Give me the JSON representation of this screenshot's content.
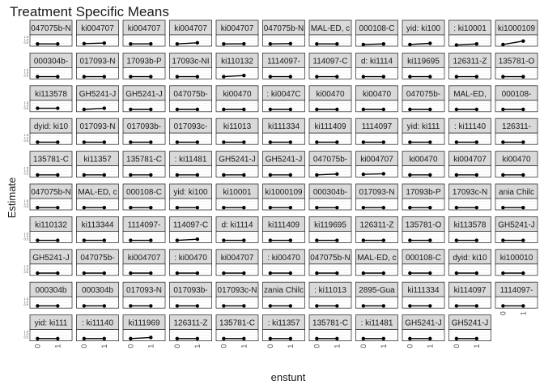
{
  "chart_data": {
    "type": "line",
    "title": "Treatment Specific Means",
    "xlabel": "enstunt",
    "ylabel": "Estimate",
    "x_categories": [
      "0",
      "1"
    ],
    "y_ticks": [
      "1.5",
      "1.0",
      "0.5"
    ],
    "ylim": [
      0,
      2
    ],
    "panels": [
      {
        "label": "047075b-N",
        "values": [
          0.4,
          0.4
        ]
      },
      {
        "label": "ki004707",
        "values": [
          0.45,
          0.55
        ]
      },
      {
        "label": "ki004707",
        "values": [
          0.4,
          0.42
        ]
      },
      {
        "label": "ki004707",
        "values": [
          0.4,
          0.6
        ]
      },
      {
        "label": "ki004707",
        "values": [
          0.4,
          0.42
        ]
      },
      {
        "label": "047075b-N",
        "values": [
          0.4,
          0.45
        ]
      },
      {
        "label": "MAL-ED, c",
        "values": [
          0.4,
          0.4
        ]
      },
      {
        "label": "000108-C",
        "values": [
          0.3,
          0.4
        ]
      },
      {
        "label": "yid: ki100",
        "values": [
          0.3,
          0.5
        ]
      },
      {
        "label": ": ki10001",
        "values": [
          0.2,
          0.4
        ]
      },
      {
        "label": "ki1000109",
        "values": [
          0.3,
          0.9
        ]
      },
      {
        "label": "000304b-",
        "values": [
          0.4,
          0.4
        ]
      },
      {
        "label": "017093-N",
        "values": [
          0.4,
          0.4
        ]
      },
      {
        "label": "17093b-P",
        "values": [
          0.4,
          0.4
        ]
      },
      {
        "label": "17093c-NI",
        "values": [
          0.4,
          0.4
        ]
      },
      {
        "label": "ki110132",
        "values": [
          0.4,
          0.6
        ]
      },
      {
        "label": "1114097-",
        "values": [
          0.4,
          0.4
        ]
      },
      {
        "label": "114097-C",
        "values": [
          0.4,
          0.4
        ]
      },
      {
        "label": "d: ki1114",
        "values": [
          0.4,
          0.4
        ]
      },
      {
        "label": "ki119695",
        "values": [
          0.4,
          0.4
        ]
      },
      {
        "label": "126311-Z",
        "values": [
          0.4,
          0.4
        ]
      },
      {
        "label": "135781-O",
        "values": [
          0.4,
          0.4
        ]
      },
      {
        "label": "ki113578",
        "values": [
          0.6,
          0.6
        ]
      },
      {
        "label": "GH5241-J",
        "values": [
          0.4,
          0.6
        ]
      },
      {
        "label": "GH5241-J",
        "values": [
          0.4,
          0.4
        ]
      },
      {
        "label": "047075b-",
        "values": [
          0.4,
          0.4
        ]
      },
      {
        "label": "ki00470",
        "values": [
          0.4,
          0.4
        ]
      },
      {
        "label": ": ki0047C",
        "values": [
          0.4,
          0.4
        ]
      },
      {
        "label": "ki00470",
        "values": [
          0.4,
          0.4
        ]
      },
      {
        "label": "ki00470",
        "values": [
          0.4,
          0.4
        ]
      },
      {
        "label": "047075b-",
        "values": [
          0.4,
          0.4
        ]
      },
      {
        "label": "MAL-ED,",
        "values": [
          0.4,
          0.4
        ]
      },
      {
        "label": "000108-",
        "values": [
          0.4,
          0.4
        ]
      },
      {
        "label": "dyid: ki10",
        "values": [
          0.4,
          0.4
        ]
      },
      {
        "label": "017093-N",
        "values": [
          0.4,
          0.4
        ]
      },
      {
        "label": "017093b-",
        "values": [
          0.4,
          0.4
        ]
      },
      {
        "label": "017093c-",
        "values": [
          0.4,
          0.4
        ]
      },
      {
        "label": "ki11013",
        "values": [
          0.4,
          0.4
        ]
      },
      {
        "label": "ki111334",
        "values": [
          0.4,
          0.4
        ]
      },
      {
        "label": "ki111409",
        "values": [
          0.4,
          0.4
        ]
      },
      {
        "label": "1114097",
        "values": [
          0.4,
          0.4
        ]
      },
      {
        "label": "yid: ki111",
        "values": [
          0.4,
          0.4
        ]
      },
      {
        "label": ": ki11140",
        "values": [
          0.4,
          0.4
        ]
      },
      {
        "label": "126311-",
        "values": [
          0.4,
          0.4
        ]
      },
      {
        "label": "135781-C",
        "values": [
          0.4,
          0.4
        ]
      },
      {
        "label": "ki11357",
        "values": [
          0.4,
          0.4
        ]
      },
      {
        "label": "135781-C",
        "values": [
          0.4,
          0.4
        ]
      },
      {
        "label": ": ki11481",
        "values": [
          0.4,
          0.4
        ]
      },
      {
        "label": "GH5241-J",
        "values": [
          0.4,
          0.4
        ]
      },
      {
        "label": "GH5241-J",
        "values": [
          0.4,
          0.4
        ]
      },
      {
        "label": "047075b-",
        "values": [
          0.4,
          0.55
        ]
      },
      {
        "label": "ki004707",
        "values": [
          0.5,
          0.6
        ]
      },
      {
        "label": "ki00470",
        "values": [
          0.4,
          0.4
        ]
      },
      {
        "label": "ki004707",
        "values": [
          0.4,
          0.4
        ]
      },
      {
        "label": "ki00470",
        "values": [
          0.4,
          0.4
        ]
      },
      {
        "label": "047075b-N",
        "values": [
          0.4,
          0.4
        ]
      },
      {
        "label": "MAL-ED, c",
        "values": [
          0.4,
          0.4
        ]
      },
      {
        "label": "000108-C",
        "values": [
          0.4,
          0.4
        ]
      },
      {
        "label": "yid: ki100",
        "values": [
          0.4,
          0.4
        ]
      },
      {
        "label": "ki10001",
        "values": [
          0.4,
          0.4
        ]
      },
      {
        "label": "ki1000109",
        "values": [
          0.4,
          0.4
        ]
      },
      {
        "label": "000304b-",
        "values": [
          0.4,
          0.4
        ]
      },
      {
        "label": "017093-N",
        "values": [
          0.4,
          0.4
        ]
      },
      {
        "label": "17093b-P",
        "values": [
          0.4,
          0.4
        ]
      },
      {
        "label": "17093c-N",
        "values": [
          0.4,
          0.4
        ]
      },
      {
        "label": "ania Chilc",
        "values": [
          0.4,
          0.4
        ]
      },
      {
        "label": "ki110132",
        "values": [
          0.4,
          0.4
        ]
      },
      {
        "label": "ki113344",
        "values": [
          0.4,
          0.4
        ]
      },
      {
        "label": "1114097-",
        "values": [
          0.4,
          0.4
        ]
      },
      {
        "label": "114097-C",
        "values": [
          0.4,
          0.6
        ]
      },
      {
        "label": "d: ki1114",
        "values": [
          0.4,
          0.4
        ]
      },
      {
        "label": "ki111409",
        "values": [
          0.4,
          0.4
        ]
      },
      {
        "label": "ki119695",
        "values": [
          0.4,
          0.4
        ]
      },
      {
        "label": "126311-Z",
        "values": [
          0.4,
          0.4
        ]
      },
      {
        "label": "135781-O",
        "values": [
          0.4,
          0.4
        ]
      },
      {
        "label": "ki113578",
        "values": [
          0.4,
          0.4
        ]
      },
      {
        "label": "GH5241-J",
        "values": [
          0.4,
          0.4
        ]
      },
      {
        "label": "GH5241-J",
        "values": [
          0.4,
          0.4
        ]
      },
      {
        "label": "047075b-",
        "values": [
          0.4,
          0.4
        ]
      },
      {
        "label": "ki004707",
        "values": [
          0.4,
          0.4
        ]
      },
      {
        "label": ": ki00470",
        "values": [
          0.4,
          0.4
        ]
      },
      {
        "label": "ki004707",
        "values": [
          0.4,
          0.4
        ]
      },
      {
        "label": ": ki00470",
        "values": [
          0.4,
          0.4
        ]
      },
      {
        "label": "047075b-N",
        "values": [
          0.4,
          0.4
        ]
      },
      {
        "label": "MAL-ED, c",
        "values": [
          0.4,
          0.4
        ]
      },
      {
        "label": "000108-C",
        "values": [
          0.4,
          0.4
        ]
      },
      {
        "label": "dyid: ki10",
        "values": [
          0.4,
          0.4
        ]
      },
      {
        "label": "ki100010",
        "values": [
          0.4,
          0.4
        ]
      },
      {
        "label": "000304b",
        "values": [
          0.4,
          0.4
        ]
      },
      {
        "label": "000304b",
        "values": [
          0.4,
          0.4
        ]
      },
      {
        "label": "017093-N",
        "values": [
          0.4,
          0.4
        ]
      },
      {
        "label": "017093b-",
        "values": [
          0.4,
          0.4
        ]
      },
      {
        "label": "017093c-N",
        "values": [
          0.4,
          0.4
        ]
      },
      {
        "label": "zania Chilc",
        "values": [
          0.4,
          0.4
        ]
      },
      {
        "label": ": ki11013",
        "values": [
          0.4,
          0.4
        ]
      },
      {
        "label": "2895-Gua",
        "values": [
          0.4,
          0.4
        ]
      },
      {
        "label": "ki111334",
        "values": [
          0.4,
          0.4
        ]
      },
      {
        "label": "ki114097",
        "values": [
          0.4,
          0.4
        ]
      },
      {
        "label": "1114097-",
        "values": [
          0.4,
          0.4
        ]
      },
      {
        "label": "yid: ki111",
        "values": [
          0.4,
          0.4
        ]
      },
      {
        "label": ": ki11140",
        "values": [
          0.4,
          0.4
        ]
      },
      {
        "label": "ki111969",
        "values": [
          0.4,
          0.6
        ]
      },
      {
        "label": "126311-Z",
        "values": [
          0.4,
          0.4
        ]
      },
      {
        "label": "135781-C",
        "values": [
          0.4,
          0.4
        ]
      },
      {
        "label": ": ki11357",
        "values": [
          0.4,
          0.4
        ]
      },
      {
        "label": "135781-C",
        "values": [
          0.4,
          0.4
        ]
      },
      {
        "label": ": ki11481",
        "values": [
          0.4,
          0.4
        ]
      },
      {
        "label": "GH5241-J",
        "values": [
          0.4,
          0.4
        ]
      },
      {
        "label": "GH5241-J",
        "values": [
          0.4,
          0.4
        ]
      }
    ]
  }
}
